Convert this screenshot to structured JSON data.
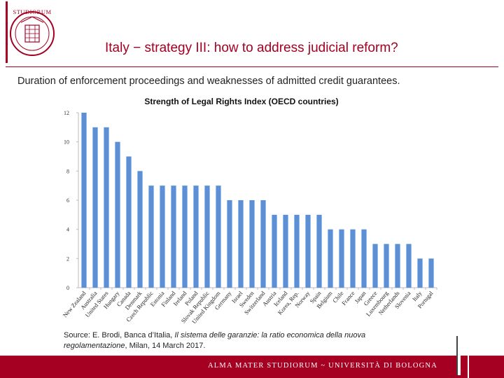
{
  "slide": {
    "title": "Italy − strategy III: how to address judicial reform?",
    "subtitle": "Duration of enforcement proceedings and weaknesses of admitted credit guarantees.",
    "source_prefix": "Source: E. Brodi, Banca d’Italia, ",
    "source_italic": "Il sistema delle garanzie: la ratio economica della nuova regolamentazione",
    "source_suffix": ", Milan, 14 March 2017.",
    "footer": "ALMA MATER STUDIORUM ~ UNIVERSITÀ DI BOLOGNA",
    "logo_text": "STUDIORUM",
    "colors": {
      "brand": "#a50021",
      "bar": "#5b8fd6"
    }
  },
  "chart_data": {
    "type": "bar",
    "title": "Strength of Legal Rights Index (OECD countries)",
    "xlabel": "",
    "ylabel": "",
    "ylim": [
      0,
      12
    ],
    "yticks": [
      0,
      2,
      4,
      6,
      8,
      10,
      12
    ],
    "grid": false,
    "categories": [
      "New Zealand",
      "Australia",
      "United States",
      "Hungary",
      "Canada",
      "Denmark",
      "Czech Republic",
      "Estonia",
      "Finland",
      "Ireland",
      "Poland",
      "Slovak Republic",
      "United Kingdom",
      "Germany",
      "Israel",
      "Sweden",
      "Switzerland",
      "Austria",
      "Iceland",
      "Korea, Rep.",
      "Norway",
      "Spain",
      "Belgium",
      "Chile",
      "France",
      "Japan",
      "Greece",
      "Luxembourg",
      "Netherlands",
      "Slovenia",
      "Italy",
      "Portugal"
    ],
    "values": [
      12,
      11,
      11,
      10,
      9,
      8,
      7,
      7,
      7,
      7,
      7,
      7,
      7,
      6,
      6,
      6,
      6,
      5,
      5,
      5,
      5,
      5,
      4,
      4,
      4,
      4,
      3,
      3,
      3,
      3,
      2,
      2
    ]
  }
}
